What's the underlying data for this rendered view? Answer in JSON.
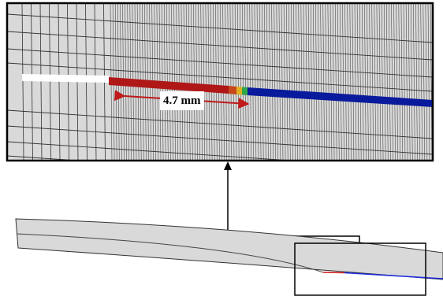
{
  "figure": {
    "dimension_label": "4.7 mm",
    "colors": {
      "mesh_fill": "#d9d9d9",
      "mesh_line": "#333333",
      "crack_white": "#ffffff",
      "damaged_red": "#b01818",
      "intact_blue": "#0a1a9c",
      "transition": [
        "#c8481a",
        "#e0b020",
        "#2ea84a"
      ],
      "dimension_arrow": "#c01a1a",
      "frame": "#000000"
    },
    "icons": [
      "arrow-up-icon",
      "double-headed-arrow-icon"
    ]
  }
}
